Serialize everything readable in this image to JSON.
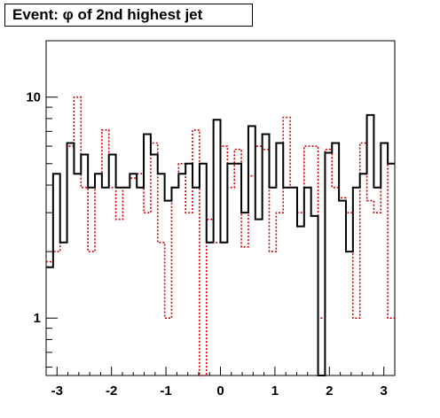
{
  "chart_data": {
    "type": "histogram-step",
    "title": "Event: φ of 2nd highest jet",
    "xlabel": "",
    "ylabel": "",
    "xlim": [
      -3.2,
      3.2
    ],
    "ylim": [
      0.55,
      18
    ],
    "y_scale": "log",
    "x_ticks": [
      "-3",
      "-2",
      "-1",
      "0",
      "1",
      "2",
      "3"
    ],
    "y_ticks": [
      "1",
      "10"
    ],
    "bins": 50,
    "colors": {
      "black_series": "#000000",
      "red_series": "#cc0000"
    },
    "series": [
      {
        "style": "solid",
        "color": "#000000",
        "values": [
          1.7,
          4.5,
          2.2,
          6.2,
          4.5,
          5.5,
          3.9,
          4.5,
          3.9,
          5.5,
          3.9,
          3.9,
          4.5,
          3.9,
          6.8,
          5.5,
          4.5,
          3.4,
          3.9,
          4.5,
          5.0,
          3.9,
          5.0,
          2.2,
          7.9,
          2.2,
          5.0,
          5.0,
          3.0,
          7.4,
          2.8,
          6.8,
          3.9,
          6.2,
          3.9,
          3.9,
          2.6,
          3.9,
          2.9,
          0.3,
          5.6,
          6.2,
          3.4,
          2.0,
          3.9,
          4.5,
          8.3,
          3.9,
          6.2,
          5.0
        ]
      },
      {
        "style": "dotted",
        "color": "#cc0000",
        "values": [
          1.8,
          2.0,
          2.2,
          6.0,
          10.0,
          3.9,
          2.0,
          4.5,
          7.1,
          3.9,
          2.8,
          3.9,
          4.3,
          4.5,
          3.0,
          6.2,
          2.2,
          1.0,
          3.9,
          5.0,
          3.0,
          7.1,
          0.3,
          2.8,
          2.2,
          6.0,
          3.9,
          5.8,
          2.1,
          4.4,
          6.0,
          5.8,
          2.0,
          3.0,
          8.1,
          3.9,
          3.0,
          6.0,
          6.0,
          1.0,
          5.8,
          3.9,
          3.5,
          3.0,
          1.0,
          6.2,
          3.4,
          3.0,
          6.2,
          1.0
        ]
      }
    ]
  }
}
